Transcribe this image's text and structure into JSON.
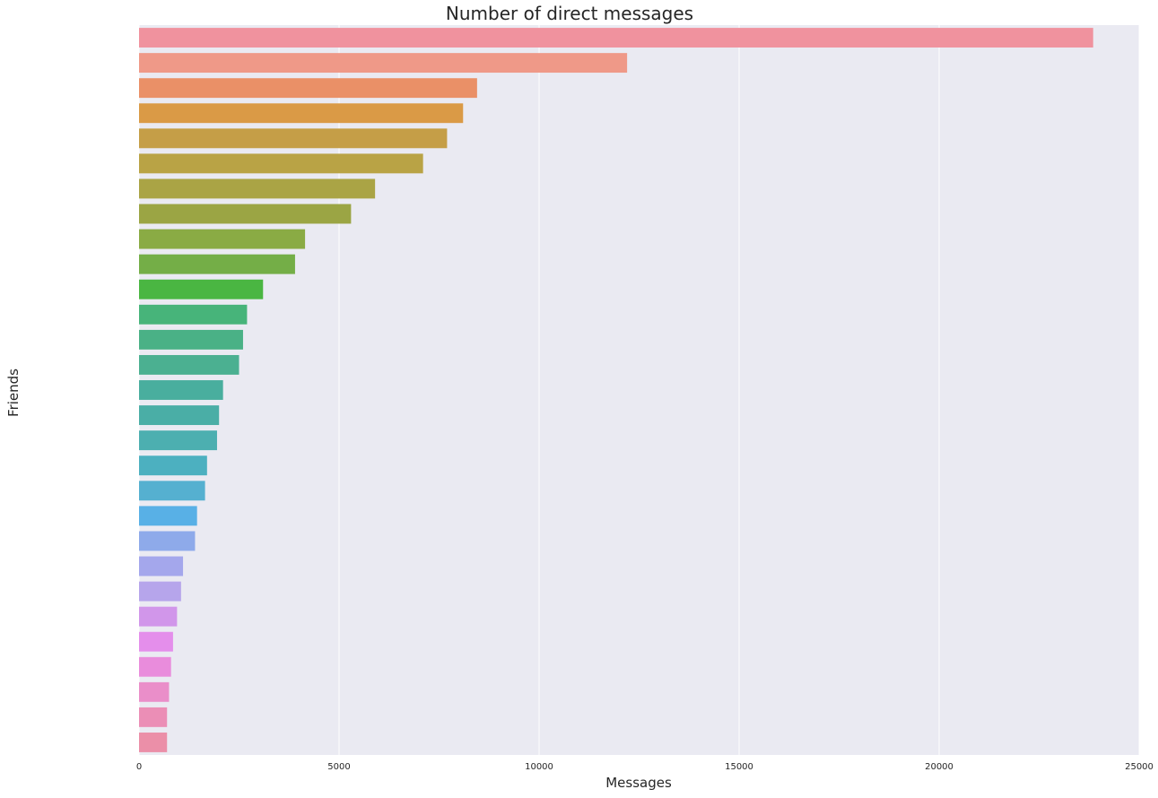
{
  "chart_data": {
    "type": "bar",
    "orientation": "horizontal",
    "title": "Number of direct messages",
    "xlabel": "Messages",
    "ylabel": "Friends",
    "xlim": [
      0,
      25000
    ],
    "xticks": [
      0,
      5000,
      10000,
      15000,
      20000,
      25000
    ],
    "grid": true,
    "legend": "none",
    "categories": [
      "",
      "",
      "",
      "",
      "",
      "",
      "",
      "",
      "",
      "",
      "",
      "",
      "",
      "",
      "",
      "",
      "",
      "",
      "",
      "",
      "",
      "",
      "",
      "",
      "",
      "",
      "",
      "",
      ""
    ],
    "values": [
      23850,
      12200,
      8450,
      8100,
      7700,
      7100,
      5900,
      5300,
      4150,
      3900,
      3100,
      2700,
      2600,
      2500,
      2100,
      2000,
      1950,
      1700,
      1650,
      1450,
      1400,
      1100,
      1050,
      950,
      850,
      800,
      750,
      700,
      700
    ],
    "colors": [
      "#f0929e",
      "#ef9988",
      "#ea9067",
      "#da9a46",
      "#c59e47",
      "#b9a345",
      "#aaa445",
      "#9ba544",
      "#8aab44",
      "#74ae47",
      "#4ab642",
      "#47b47a",
      "#4ab186",
      "#4bb091",
      "#49ae9e",
      "#4aaea6",
      "#4cafb0",
      "#4cb0c0",
      "#55b0d0",
      "#58b0e6",
      "#8eaaea",
      "#a4a7ec",
      "#b6a5eb",
      "#d196ea",
      "#e48eeb",
      "#e98cdc",
      "#ea8ec9",
      "#eb8eb6",
      "#eb8fa8"
    ],
    "background": "#eaeaf2",
    "grid_color": "#ffffff"
  }
}
